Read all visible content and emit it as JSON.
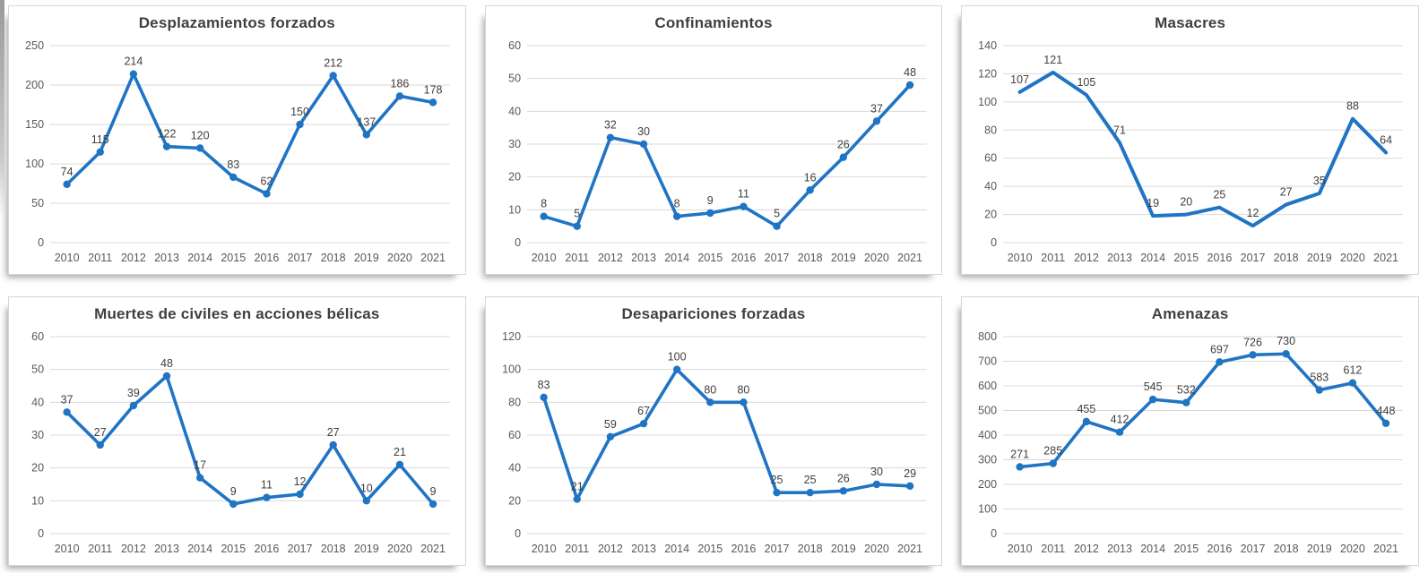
{
  "page": {
    "background": "#ffffff",
    "layout": "2x3-chart-grid"
  },
  "colors": {
    "line": "#2074c4",
    "grid": "#d9d9d9",
    "panel_border": "#d6d6d6",
    "panel_bg": "#ffffff",
    "title_text": "#3f3f3f",
    "tick_text": "#595959",
    "label_text": "#404040"
  },
  "chart_data": [
    {
      "type": "line",
      "title": "Desplazamientos forzados",
      "categories": [
        "2010",
        "2011",
        "2012",
        "2013",
        "2014",
        "2015",
        "2016",
        "2017",
        "2018",
        "2019",
        "2020",
        "2021"
      ],
      "values": [
        74,
        115,
        214,
        122,
        120,
        83,
        62,
        150,
        212,
        137,
        186,
        178
      ],
      "xlabel": "",
      "ylabel": "",
      "ylim": [
        0,
        250
      ],
      "ytick_step": 50,
      "markers": true,
      "data_labels": true,
      "grid": true,
      "legend": "none",
      "line_width": 3.6
    },
    {
      "type": "line",
      "title": "Confinamientos",
      "categories": [
        "2010",
        "2011",
        "2012",
        "2013",
        "2014",
        "2015",
        "2016",
        "2017",
        "2018",
        "2019",
        "2020",
        "2021"
      ],
      "values": [
        8,
        5,
        32,
        30,
        8,
        9,
        11,
        5,
        16,
        26,
        37,
        48
      ],
      "xlabel": "",
      "ylabel": "",
      "ylim": [
        0,
        60
      ],
      "ytick_step": 10,
      "markers": true,
      "data_labels": true,
      "grid": true,
      "legend": "none",
      "line_width": 3.6
    },
    {
      "type": "line",
      "title": "Masacres",
      "categories": [
        "2010",
        "2011",
        "2012",
        "2013",
        "2014",
        "2015",
        "2016",
        "2017",
        "2018",
        "2019",
        "2020",
        "2021"
      ],
      "values": [
        107,
        121,
        105,
        71,
        19,
        20,
        25,
        12,
        27,
        35,
        88,
        64
      ],
      "xlabel": "",
      "ylabel": "",
      "ylim": [
        0,
        140
      ],
      "ytick_step": 20,
      "markers": false,
      "data_labels": true,
      "grid": true,
      "legend": "none",
      "line_width": 4
    },
    {
      "type": "line",
      "title": "Muertes de civiles en acciones bélicas",
      "categories": [
        "2010",
        "2011",
        "2012",
        "2013",
        "2014",
        "2015",
        "2016",
        "2017",
        "2018",
        "2019",
        "2020",
        "2021"
      ],
      "values": [
        37,
        27,
        39,
        48,
        17,
        9,
        11,
        12,
        27,
        10,
        21,
        9
      ],
      "xlabel": "",
      "ylabel": "",
      "ylim": [
        0,
        60
      ],
      "ytick_step": 10,
      "markers": true,
      "data_labels": true,
      "grid": true,
      "legend": "none",
      "line_width": 3.6
    },
    {
      "type": "line",
      "title": "Desapariciones forzadas",
      "categories": [
        "2010",
        "2011",
        "2012",
        "2013",
        "2014",
        "2015",
        "2016",
        "2017",
        "2018",
        "2019",
        "2020",
        "2021"
      ],
      "values": [
        83,
        21,
        59,
        67,
        100,
        80,
        80,
        25,
        25,
        26,
        30,
        29
      ],
      "xlabel": "",
      "ylabel": "",
      "ylim": [
        0,
        120
      ],
      "ytick_step": 20,
      "markers": true,
      "data_labels": true,
      "grid": true,
      "legend": "none",
      "line_width": 3.6
    },
    {
      "type": "line",
      "title": "Amenazas",
      "categories": [
        "2010",
        "2011",
        "2012",
        "2013",
        "2014",
        "2015",
        "2016",
        "2017",
        "2018",
        "2019",
        "2020",
        "2021"
      ],
      "values": [
        271,
        285,
        455,
        412,
        545,
        532,
        697,
        726,
        730,
        583,
        612,
        448
      ],
      "xlabel": "",
      "ylabel": "",
      "ylim": [
        0,
        800
      ],
      "ytick_step": 100,
      "markers": true,
      "data_labels": true,
      "grid": true,
      "legend": "none",
      "line_width": 3.6
    }
  ]
}
